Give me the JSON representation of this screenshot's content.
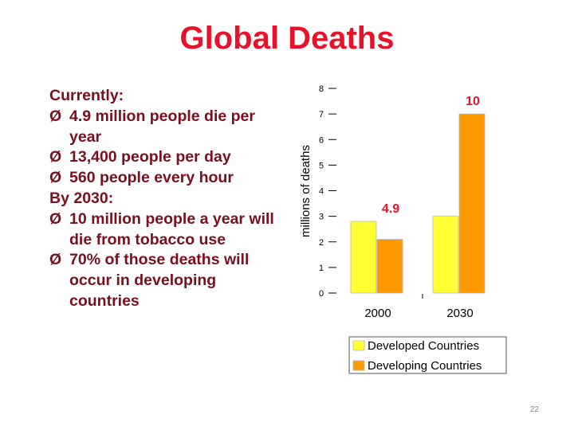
{
  "slide": {
    "title": "Global Deaths",
    "number": "22"
  },
  "bullets": {
    "heading1": "Currently:",
    "items1": [
      "4.9 million people die per year",
      "13,400 people per day",
      "560 people every hour"
    ],
    "heading2": "By 2030:",
    "items2": [
      "10 million people a year will die from tobacco use",
      "70% of those deaths will occur in developing countries"
    ],
    "marker": "Ø"
  },
  "chart_data": {
    "type": "bar",
    "categories": [
      "2000",
      "2030"
    ],
    "series": [
      {
        "name": "Developed Countries",
        "values": [
          2.8,
          3.0
        ],
        "color": "#ffff33"
      },
      {
        "name": "Developing Countries",
        "values": [
          2.1,
          7.0
        ],
        "color": "#ff9900"
      }
    ],
    "ylabel": "millions of deaths",
    "ylim": [
      0,
      8
    ],
    "yticks": [
      "0",
      "1",
      "2",
      "3",
      "4",
      "5",
      "6",
      "7",
      "8"
    ],
    "annotations": [
      {
        "text": "4.9",
        "category": "2000"
      },
      {
        "text": "10",
        "category": "2030"
      }
    ],
    "annotation_color": "#e8132a",
    "legend": "bottom",
    "grid": false
  }
}
